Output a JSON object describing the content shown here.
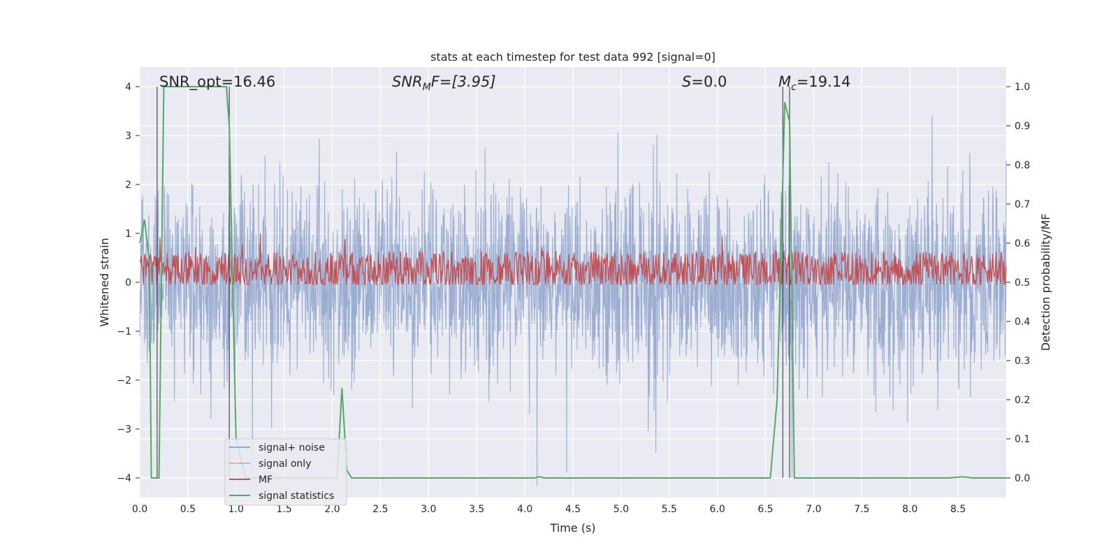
{
  "chart_data": {
    "type": "line",
    "title": "stats at each timestep for test data 992 [signal=0]",
    "xlabel": "Time (s)",
    "ylabel": "Whitened strain",
    "ylabel_right": "Detection probability/MF",
    "xlim": [
      0.0,
      9.0
    ],
    "ylim": [
      -4.4,
      4.4
    ],
    "ylim_right": [
      -0.05,
      1.05
    ],
    "x_ticks": [
      "0.0",
      "0.5",
      "1.0",
      "1.5",
      "2.0",
      "2.5",
      "3.0",
      "3.5",
      "4.0",
      "4.5",
      "5.0",
      "5.5",
      "6.0",
      "6.5",
      "7.0",
      "7.5",
      "8.0",
      "8.5"
    ],
    "y_ticks": [
      "4",
      "3",
      "2",
      "1",
      "0",
      "−1",
      "−2",
      "−3",
      "−4"
    ],
    "y_ticks_right": [
      "1.0",
      "0.9",
      "0.8",
      "0.7",
      "0.6",
      "0.5",
      "0.4",
      "0.3",
      "0.2",
      "0.1",
      "0.0"
    ],
    "grid": true,
    "legend_position": "lower-left",
    "annotations": {
      "snr_opt": "SNR_opt=16.46",
      "snr_mf": "SNR",
      "snr_mf_sub": "M",
      "snr_mf_rest": "F=[3.95]",
      "s_var": "S",
      "s_rest": "=0.0",
      "mc_var": "M",
      "mc_sub": "c",
      "mc_rest": "=19.14"
    },
    "vertical_markers": [
      0.18,
      0.93,
      6.68,
      6.75
    ],
    "series": [
      {
        "name": "signal+ noise",
        "color": "#4c72b0",
        "axis": "left",
        "noise_amplitude": 1.6
      },
      {
        "name": "signal only",
        "color": "#dd8452",
        "axis": "left",
        "values": []
      },
      {
        "name": "MF",
        "color": "#c44e52",
        "axis": "right",
        "baseline": 0.53,
        "spread": 0.05
      },
      {
        "name": "signal statistics",
        "color": "#55a868",
        "axis": "right",
        "x": [
          0.0,
          0.05,
          0.1,
          0.12,
          0.2,
          0.25,
          0.9,
          0.93,
          1.0,
          1.1,
          2.05,
          2.1,
          2.15,
          2.2,
          2.3,
          4.1,
          4.15,
          4.2,
          6.55,
          6.62,
          6.7,
          6.75,
          6.8,
          6.85,
          8.4,
          8.55,
          8.65,
          8.7,
          9.0
        ],
        "values": [
          0.6,
          0.66,
          0.55,
          0.0,
          0.0,
          1.0,
          1.0,
          0.9,
          0.1,
          0.0,
          0.0,
          0.23,
          0.02,
          0.0,
          0.0,
          0.0,
          0.003,
          0.0,
          0.0,
          0.2,
          0.96,
          0.91,
          0.0,
          0.0,
          0.0,
          0.003,
          0.0,
          0.0,
          0.0
        ]
      }
    ]
  }
}
